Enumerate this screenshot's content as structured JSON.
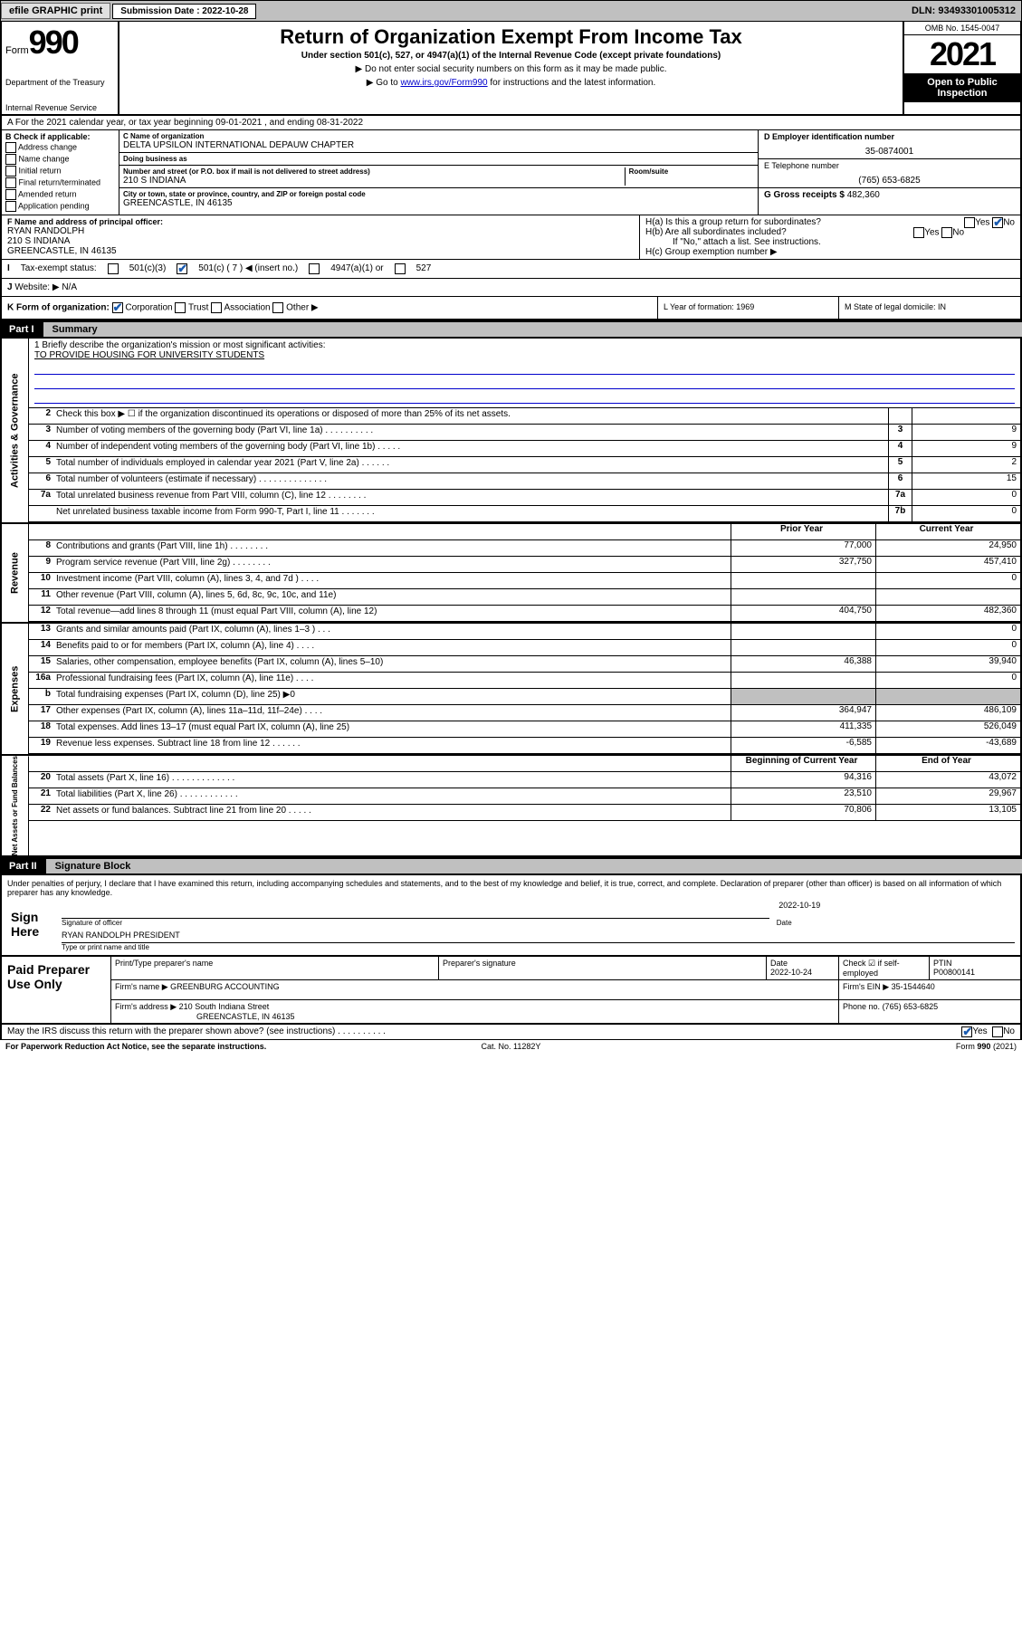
{
  "topbar": {
    "efile": "efile GRAPHIC print",
    "sub_label": "Submission Date : 2022-10-28",
    "dln": "DLN: 93493301005312"
  },
  "header": {
    "form_word": "Form",
    "form_num": "990",
    "dept": "Department of the Treasury",
    "irs": "Internal Revenue Service",
    "title": "Return of Organization Exempt From Income Tax",
    "subtitle": "Under section 501(c), 527, or 4947(a)(1) of the Internal Revenue Code (except private foundations)",
    "note1": "▶ Do not enter social security numbers on this form as it may be made public.",
    "note2_pre": "▶ Go to ",
    "note2_link": "www.irs.gov/Form990",
    "note2_post": " for instructions and the latest information.",
    "omb": "OMB No. 1545-0047",
    "year": "2021",
    "open_pub1": "Open to Public",
    "open_pub2": "Inspection"
  },
  "row_a": "A For the 2021 calendar year, or tax year beginning 09-01-2021  , and ending 08-31-2022",
  "col_b": {
    "label": "B Check if applicable:",
    "opts": [
      "Address change",
      "Name change",
      "Initial return",
      "Final return/terminated",
      "Amended return",
      "Application pending"
    ]
  },
  "row_c": {
    "lbl_name": "C Name of organization",
    "name": "DELTA UPSILON INTERNATIONAL DEPAUW CHAPTER",
    "dba_lbl": "Doing business as",
    "dba": "",
    "street_lbl": "Number and street (or P.O. box if mail is not delivered to street address)",
    "room_lbl": "Room/suite",
    "street": "210 S INDIANA",
    "city_lbl": "City or town, state or province, country, and ZIP or foreign postal code",
    "city": "GREENCASTLE, IN  46135"
  },
  "col_d": {
    "lbl": "D Employer identification number",
    "val": "35-0874001"
  },
  "col_e": {
    "lbl": "E Telephone number",
    "val": "(765) 653-6825"
  },
  "col_g": {
    "lbl": "G Gross receipts $",
    "val": "482,360"
  },
  "row_f": {
    "lbl": "F Name and address of principal officer:",
    "line1": "RYAN RANDOLPH",
    "line2": "210 S INDIANA",
    "line3": "GREENCASTLE, IN  46135"
  },
  "row_h": {
    "ha": "H(a)  Is this a group return for subordinates?",
    "hb": "H(b)  Are all subordinates included?",
    "hnote": "If \"No,\" attach a list. See instructions.",
    "hc": "H(c)  Group exemption number ▶",
    "yes": "Yes",
    "no": "No"
  },
  "row_i": {
    "lbl": "Tax-exempt status:",
    "o1": "501(c)(3)",
    "o2": "501(c) ( 7 ) ◀ (insert no.)",
    "o3": "4947(a)(1) or",
    "o4": "527"
  },
  "row_j": {
    "lbl": "J",
    "txt": "Website: ▶",
    "val": "N/A"
  },
  "row_k": {
    "lbl": "K Form of organization:",
    "o1": "Corporation",
    "o2": "Trust",
    "o3": "Association",
    "o4": "Other ▶"
  },
  "row_l": "L Year of formation: 1969",
  "row_m": "M State of legal domicile: IN",
  "part1": {
    "tab": "Part I",
    "name": "Summary"
  },
  "mission": {
    "q": "1  Briefly describe the organization's mission or most significant activities:",
    "a": "TO PROVIDE HOUSING FOR UNIVERSITY STUDENTS"
  },
  "gov_rows": [
    {
      "n": "2",
      "d": "Check this box ▶ ☐  if the organization discontinued its operations or disposed of more than 25% of its net assets.",
      "box": "",
      "v": ""
    },
    {
      "n": "3",
      "d": "Number of voting members of the governing body (Part VI, line 1a)  .  .  .  .  .  .  .  .  .  .",
      "box": "3",
      "v": "9"
    },
    {
      "n": "4",
      "d": "Number of independent voting members of the governing body (Part VI, line 1b)  .  .  .  .  .",
      "box": "4",
      "v": "9"
    },
    {
      "n": "5",
      "d": "Total number of individuals employed in calendar year 2021 (Part V, line 2a)  .  .  .  .  .  .",
      "box": "5",
      "v": "2"
    },
    {
      "n": "6",
      "d": "Total number of volunteers (estimate if necessary)  .  .  .  .  .  .  .  .  .  .  .  .  .  .",
      "box": "6",
      "v": "15"
    },
    {
      "n": "7a",
      "d": "Total unrelated business revenue from Part VIII, column (C), line 12  .  .  .  .  .  .  .  .",
      "box": "7a",
      "v": "0"
    },
    {
      "n": "",
      "d": "Net unrelated business taxable income from Form 990-T, Part I, line 11  .  .  .  .  .  .  .",
      "box": "7b",
      "v": "0"
    }
  ],
  "col_headers": {
    "c1": "Prior Year",
    "c2": "Current Year"
  },
  "revenue": [
    {
      "n": "8",
      "d": "Contributions and grants (Part VIII, line 1h)  .  .  .  .  .  .  .  .",
      "c1": "77,000",
      "c2": "24,950"
    },
    {
      "n": "9",
      "d": "Program service revenue (Part VIII, line 2g)  .  .  .  .  .  .  .  .",
      "c1": "327,750",
      "c2": "457,410"
    },
    {
      "n": "10",
      "d": "Investment income (Part VIII, column (A), lines 3, 4, and 7d )  .  .  .  .",
      "c1": "",
      "c2": "0"
    },
    {
      "n": "11",
      "d": "Other revenue (Part VIII, column (A), lines 5, 6d, 8c, 9c, 10c, and 11e)",
      "c1": "",
      "c2": ""
    },
    {
      "n": "12",
      "d": "Total revenue—add lines 8 through 11 (must equal Part VIII, column (A), line 12)",
      "c1": "404,750",
      "c2": "482,360"
    }
  ],
  "expenses": [
    {
      "n": "13",
      "d": "Grants and similar amounts paid (Part IX, column (A), lines 1–3 )  .  .  .",
      "c1": "",
      "c2": "0"
    },
    {
      "n": "14",
      "d": "Benefits paid to or for members (Part IX, column (A), line 4)  .  .  .  .",
      "c1": "",
      "c2": "0"
    },
    {
      "n": "15",
      "d": "Salaries, other compensation, employee benefits (Part IX, column (A), lines 5–10)",
      "c1": "46,388",
      "c2": "39,940"
    },
    {
      "n": "16a",
      "d": "Professional fundraising fees (Part IX, column (A), line 11e)  .  .  .  .",
      "c1": "",
      "c2": "0"
    },
    {
      "n": "b",
      "d": "Total fundraising expenses (Part IX, column (D), line 25) ▶0",
      "c1": "shade",
      "c2": "shade"
    },
    {
      "n": "17",
      "d": "Other expenses (Part IX, column (A), lines 11a–11d, 11f–24e)  .  .  .  .",
      "c1": "364,947",
      "c2": "486,109"
    },
    {
      "n": "18",
      "d": "Total expenses. Add lines 13–17 (must equal Part IX, column (A), line 25)",
      "c1": "411,335",
      "c2": "526,049"
    },
    {
      "n": "19",
      "d": "Revenue less expenses. Subtract line 18 from line 12  .  .  .  .  .  .",
      "c1": "-6,585",
      "c2": "-43,689"
    }
  ],
  "net_headers": {
    "c1": "Beginning of Current Year",
    "c2": "End of Year"
  },
  "netassets": [
    {
      "n": "20",
      "d": "Total assets (Part X, line 16)  .  .  .  .  .  .  .  .  .  .  .  .  .",
      "c1": "94,316",
      "c2": "43,072"
    },
    {
      "n": "21",
      "d": "Total liabilities (Part X, line 26)  .  .  .  .  .  .  .  .  .  .  .  .",
      "c1": "23,510",
      "c2": "29,967"
    },
    {
      "n": "22",
      "d": "Net assets or fund balances. Subtract line 21 from line 20  .  .  .  .  .",
      "c1": "70,806",
      "c2": "13,105"
    }
  ],
  "part2": {
    "tab": "Part II",
    "name": "Signature Block"
  },
  "sig": {
    "penalty": "Under penalties of perjury, I declare that I have examined this return, including accompanying schedules and statements, and to the best of my knowledge and belief, it is true, correct, and complete. Declaration of preparer (other than officer) is based on all information of which preparer has any knowledge.",
    "sign_here": "Sign Here",
    "sig_officer": "Signature of officer",
    "date_lbl": "Date",
    "date": "2022-10-19",
    "name_title": "RYAN RANDOLPH  PRESIDENT",
    "type_lbl": "Type or print name and title"
  },
  "paid": {
    "title": "Paid Preparer Use Only",
    "r1": {
      "c1": "Print/Type preparer's name",
      "c2": "Preparer's signature",
      "c3": "Date",
      "c3v": "2022-10-24",
      "c4": "Check ☑ if self-employed",
      "c5": "PTIN",
      "c5v": "P00800141"
    },
    "r2": {
      "lbl": "Firm's name    ▶",
      "val": "GREENBURG ACCOUNTING",
      "ein_lbl": "Firm's EIN ▶",
      "ein": "35-1544640"
    },
    "r3": {
      "lbl": "Firm's address ▶",
      "val1": "210 South Indiana Street",
      "val2": "GREENCASTLE, IN  46135",
      "ph_lbl": "Phone no.",
      "ph": "(765) 653-6825"
    }
  },
  "footer": {
    "may": "May the IRS discuss this return with the preparer shown above? (see instructions)  .  .  .  .  .  .  .  .  .  .",
    "yes": "Yes",
    "no": "No",
    "pra": "For Paperwork Reduction Act Notice, see the separate instructions.",
    "cat": "Cat. No. 11282Y",
    "form": "Form 990 (2021)"
  },
  "vtabs": {
    "gov": "Activities & Governance",
    "rev": "Revenue",
    "exp": "Expenses",
    "net": "Net Assets or Fund Balances"
  },
  "colors": {
    "link": "#0000cc",
    "check": "#1a5bb0",
    "shade": "#c0c0c0"
  }
}
